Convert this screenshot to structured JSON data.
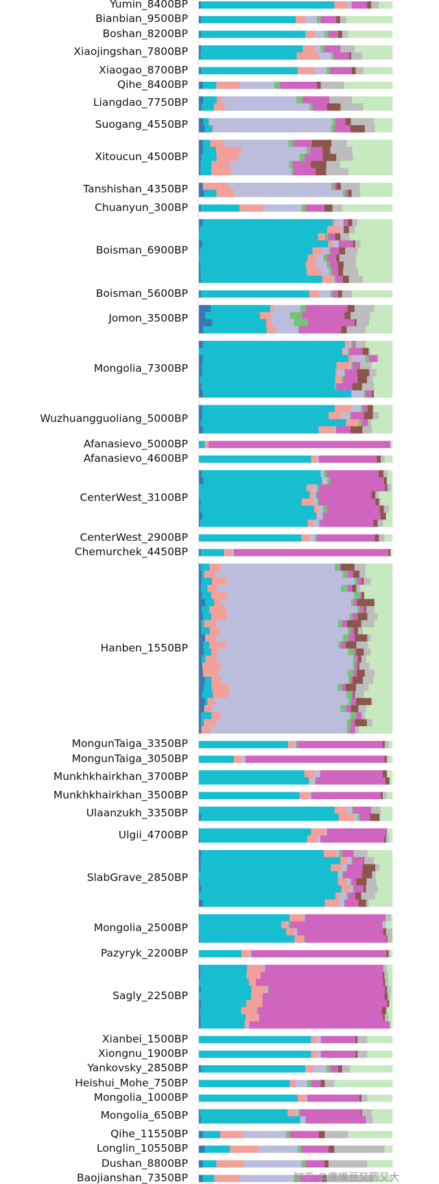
{
  "watermark": "知乎 @鹰嘴豆又圆又大",
  "chart_data": {
    "type": "stacked-bar (ADMIXTURE)",
    "orientation": "horizontal",
    "xlim": [
      0,
      1
    ],
    "legend": "none",
    "grid": false,
    "components": [
      {
        "name": "c1",
        "color": "#3a78b5"
      },
      {
        "name": "c2",
        "color": "#17becf"
      },
      {
        "name": "c3",
        "color": "#f4a09a"
      },
      {
        "name": "c4",
        "color": "#bcbddc"
      },
      {
        "name": "c5",
        "color": "#74c476"
      },
      {
        "name": "c6",
        "color": "#d065c0"
      },
      {
        "name": "c7",
        "color": "#8c564b"
      },
      {
        "name": "c8",
        "color": "#bdbdbd"
      },
      {
        "name": "c9",
        "color": "#c7e9c0"
      }
    ],
    "groups": [
      {
        "label": "Yumin_8400BP",
        "n": 1,
        "proportions": [
          0.01,
          0.69,
          0.07,
          0.02,
          0.0,
          0.08,
          0.02,
          0.04,
          0.07
        ]
      },
      {
        "label": "Bianbian_9500BP",
        "n": 1,
        "proportions": [
          0.01,
          0.49,
          0.05,
          0.06,
          0.02,
          0.08,
          0.02,
          0.03,
          0.24
        ]
      },
      {
        "label": "Boshan_8200BP",
        "n": 1,
        "proportions": [
          0.01,
          0.54,
          0.05,
          0.05,
          0.02,
          0.05,
          0.02,
          0.03,
          0.23
        ]
      },
      {
        "label": "Xiaojingshan_7800BP",
        "n": 2,
        "proportions": [
          0.01,
          0.5,
          0.09,
          0.05,
          0.02,
          0.08,
          0.03,
          0.04,
          0.18
        ]
      },
      {
        "label": "Xiaogao_8700BP",
        "n": 1,
        "proportions": [
          0.01,
          0.5,
          0.09,
          0.06,
          0.02,
          0.11,
          0.02,
          0.04,
          0.15
        ]
      },
      {
        "label": "Qihe_8400BP",
        "n": 1,
        "proportions": [
          0.02,
          0.07,
          0.12,
          0.18,
          0.03,
          0.19,
          0.02,
          0.12,
          0.25
        ]
      },
      {
        "label": "Liangdao_7750BP",
        "n": 2,
        "proportions": [
          0.02,
          0.07,
          0.05,
          0.42,
          0.02,
          0.1,
          0.03,
          0.12,
          0.17
        ]
      },
      {
        "label": "Suogang_4550BP",
        "n": 2,
        "proportions": [
          0.02,
          0.04,
          0.03,
          0.58,
          0.02,
          0.06,
          0.06,
          0.08,
          0.11
        ]
      },
      {
        "label": "Xitoucun_4500BP",
        "n": 5,
        "proportions": [
          0.02,
          0.07,
          0.1,
          0.33,
          0.02,
          0.08,
          0.06,
          0.09,
          0.23
        ]
      },
      {
        "label": "Tanshishan_4350BP",
        "n": 2,
        "proportions": [
          0.02,
          0.03,
          0.11,
          0.49,
          0.02,
          0.05,
          0.05,
          0.08,
          0.15
        ]
      },
      {
        "label": "Chuanyun_300BP",
        "n": 1,
        "proportions": [
          0.01,
          0.2,
          0.12,
          0.2,
          0.02,
          0.1,
          0.04,
          0.05,
          0.26
        ]
      },
      {
        "label": "Boisman_6900BP",
        "n": 9,
        "proportions": [
          0.01,
          0.6,
          0.04,
          0.04,
          0.01,
          0.04,
          0.02,
          0.06,
          0.18
        ]
      },
      {
        "label": "Boisman_5600BP",
        "n": 1,
        "proportions": [
          0.01,
          0.56,
          0.05,
          0.06,
          0.01,
          0.03,
          0.02,
          0.05,
          0.21
        ]
      },
      {
        "label": "Jomon_3500BP",
        "n": 4,
        "proportions": [
          0.04,
          0.3,
          0.04,
          0.12,
          0.04,
          0.23,
          0.02,
          0.09,
          0.12
        ]
      },
      {
        "label": "Mongolia_7300BP",
        "n": 8,
        "proportions": [
          0.01,
          0.71,
          0.03,
          0.03,
          0.01,
          0.05,
          0.03,
          0.03,
          0.1
        ]
      },
      {
        "label": "Wuzhuangguoliang_5000BP",
        "n": 4,
        "proportions": [
          0.02,
          0.65,
          0.06,
          0.04,
          0.01,
          0.06,
          0.03,
          0.03,
          0.1
        ]
      },
      {
        "label": "Afanasievo_5000BP",
        "n": 1,
        "proportions": [
          0.0,
          0.03,
          0.02,
          0.0,
          0.0,
          0.94,
          0.0,
          0.0,
          0.01
        ]
      },
      {
        "label": "Afanasievo_4600BP",
        "n": 1,
        "proportions": [
          0.0,
          0.58,
          0.03,
          0.01,
          0.0,
          0.3,
          0.02,
          0.02,
          0.04
        ]
      },
      {
        "label": "CenterWest_3100BP",
        "n": 8,
        "proportions": [
          0.01,
          0.55,
          0.03,
          0.02,
          0.01,
          0.29,
          0.02,
          0.03,
          0.04
        ]
      },
      {
        "label": "CenterWest_2900BP",
        "n": 1,
        "proportions": [
          0.0,
          0.53,
          0.04,
          0.03,
          0.01,
          0.3,
          0.02,
          0.03,
          0.04
        ]
      },
      {
        "label": "Chemurchek_4450BP",
        "n": 1,
        "proportions": [
          0.01,
          0.12,
          0.04,
          0.01,
          0.0,
          0.8,
          0.01,
          0.0,
          0.01
        ]
      },
      {
        "label": "Hanben_1550BP",
        "n": 24,
        "proportions": [
          0.02,
          0.03,
          0.07,
          0.64,
          0.02,
          0.02,
          0.04,
          0.04,
          0.12
        ]
      },
      {
        "label": "MongunTaiga_3350BP",
        "n": 1,
        "proportions": [
          0.0,
          0.46,
          0.03,
          0.01,
          0.01,
          0.44,
          0.01,
          0.02,
          0.02
        ]
      },
      {
        "label": "MongunTaiga_3050BP",
        "n": 1,
        "proportions": [
          0.0,
          0.18,
          0.04,
          0.02,
          0.0,
          0.72,
          0.01,
          0.01,
          0.02
        ]
      },
      {
        "label": "Munkhkhairkhan_3700BP",
        "n": 2,
        "proportions": [
          0.0,
          0.55,
          0.04,
          0.02,
          0.0,
          0.35,
          0.01,
          0.01,
          0.02
        ]
      },
      {
        "label": "Munkhkhairkhan_3500BP",
        "n": 1,
        "proportions": [
          0.0,
          0.52,
          0.05,
          0.01,
          0.0,
          0.36,
          0.01,
          0.02,
          0.03
        ]
      },
      {
        "label": "Ulaanzukh_3350BP",
        "n": 2,
        "proportions": [
          0.0,
          0.72,
          0.04,
          0.02,
          0.0,
          0.08,
          0.03,
          0.03,
          0.08
        ]
      },
      {
        "label": "Ulgii_4700BP",
        "n": 2,
        "proportions": [
          0.0,
          0.58,
          0.04,
          0.01,
          0.0,
          0.33,
          0.01,
          0.01,
          0.02
        ]
      },
      {
        "label": "SlabGrave_2850BP",
        "n": 8,
        "proportions": [
          0.01,
          0.68,
          0.04,
          0.02,
          0.01,
          0.06,
          0.03,
          0.05,
          0.1
        ]
      },
      {
        "label": "Mongolia_2500BP",
        "n": 4,
        "proportions": [
          0.0,
          0.45,
          0.04,
          0.01,
          0.0,
          0.44,
          0.01,
          0.02,
          0.03
        ]
      },
      {
        "label": "Pazyryk_2200BP",
        "n": 1,
        "proportions": [
          0.0,
          0.22,
          0.04,
          0.01,
          0.0,
          0.7,
          0.01,
          0.01,
          0.01
        ]
      },
      {
        "label": "Sagly_2250BP",
        "n": 9,
        "proportions": [
          0.0,
          0.25,
          0.05,
          0.0,
          0.0,
          0.66,
          0.01,
          0.01,
          0.02
        ]
      },
      {
        "label": "Xianbei_1500BP",
        "n": 1,
        "proportions": [
          0.0,
          0.58,
          0.03,
          0.02,
          0.0,
          0.18,
          0.01,
          0.05,
          0.13
        ]
      },
      {
        "label": "Xiongnu_1900BP",
        "n": 1,
        "proportions": [
          0.0,
          0.58,
          0.03,
          0.02,
          0.0,
          0.18,
          0.01,
          0.05,
          0.13
        ]
      },
      {
        "label": "Yankovsky_2850BP",
        "n": 1,
        "proportions": [
          0.01,
          0.54,
          0.04,
          0.07,
          0.02,
          0.04,
          0.02,
          0.04,
          0.22
        ]
      },
      {
        "label": "Heishui_Mohe_750BP",
        "n": 1,
        "proportions": [
          0.0,
          0.47,
          0.03,
          0.06,
          0.02,
          0.05,
          0.02,
          0.05,
          0.3
        ]
      },
      {
        "label": "Mongolia_1000BP",
        "n": 1,
        "proportions": [
          0.0,
          0.51,
          0.04,
          0.01,
          0.0,
          0.27,
          0.01,
          0.03,
          0.13
        ]
      },
      {
        "label": "Mongolia_650BP",
        "n": 2,
        "proportions": [
          0.0,
          0.48,
          0.03,
          0.02,
          0.0,
          0.33,
          0.01,
          0.03,
          0.1
        ]
      },
      {
        "label": "Qihe_11550BP",
        "n": 1,
        "proportions": [
          0.02,
          0.09,
          0.12,
          0.22,
          0.02,
          0.15,
          0.03,
          0.12,
          0.23
        ]
      },
      {
        "label": "Longlin_10550BP",
        "n": 1,
        "proportions": [
          0.03,
          0.13,
          0.15,
          0.2,
          0.02,
          0.14,
          0.03,
          0.26,
          0.04
        ]
      },
      {
        "label": "Dushan_8800BP",
        "n": 1,
        "proportions": [
          0.02,
          0.07,
          0.14,
          0.3,
          0.02,
          0.1,
          0.02,
          0.2,
          0.13
        ]
      },
      {
        "label": "Baojianshan_7350BP",
        "n": 1,
        "proportions": [
          0.02,
          0.06,
          0.13,
          0.28,
          0.03,
          0.12,
          0.02,
          0.24,
          0.1
        ]
      }
    ]
  }
}
